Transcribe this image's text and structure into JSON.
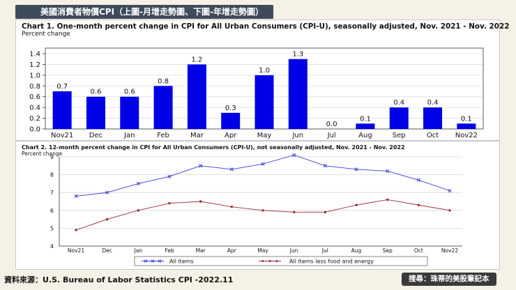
{
  "header": {
    "title": "美國消費者物價CPI（上圖-月增走勢圖、下圖-年增走勢圖）"
  },
  "footer": {
    "source": "資料來源：U.S. Bureau of Labor Statistics CPI -2022.11",
    "badge": "搜尋：珠蒂的美股筆記本"
  },
  "chart_data": [
    {
      "type": "bar",
      "title": "Chart 1. One-month percent change in CPI for All Urban Consumers (CPI-U), seasonally adjusted, Nov. 2021 - Nov. 2022",
      "ylabel": "Percent change",
      "categories": [
        "Nov21",
        "Dec",
        "Jan",
        "Feb",
        "Mar",
        "Apr",
        "May",
        "Jun",
        "Jul",
        "Aug",
        "Sep",
        "Oct",
        "Nov22"
      ],
      "values": [
        0.7,
        0.6,
        0.6,
        0.8,
        1.2,
        0.3,
        1.0,
        1.3,
        0.0,
        0.1,
        0.4,
        0.4,
        0.1
      ],
      "data_labels": [
        "0.7",
        "0.6",
        "0.6",
        "0.8",
        "1.2",
        "0.3",
        "1.0",
        "1.3",
        "0.0",
        "0.1",
        "0.4",
        "0.4",
        "0.1"
      ],
      "yticks": [
        "0.0",
        "0.2",
        "0.4",
        "0.6",
        "0.8",
        "1.0",
        "1.2",
        "1.4"
      ],
      "ylim": [
        0,
        1.4
      ],
      "grid": true,
      "color": "#0000e6"
    },
    {
      "type": "line",
      "title": "Chart 2. 12-month percent change in CPI for All Urban Consumers (CPI-U), not seasonally adjusted, Nov. 2021 - Nov. 2022",
      "ylabel": "Percent change",
      "categories": [
        "Nov21",
        "Dec",
        "Jan",
        "Feb",
        "Mar",
        "Apr",
        "May",
        "Jun",
        "Jul",
        "Aug",
        "Sep",
        "Oct",
        "Nov22"
      ],
      "yticks": [
        "4",
        "5",
        "6",
        "7",
        "8",
        "9"
      ],
      "ylim": [
        4,
        9
      ],
      "grid": true,
      "legend_position": "bottom",
      "series": [
        {
          "name": "All items",
          "color": "#3b3bd9",
          "marker": "x",
          "values": [
            6.8,
            7.0,
            7.5,
            7.9,
            8.5,
            8.3,
            8.6,
            9.1,
            8.5,
            8.3,
            8.2,
            7.7,
            7.1
          ]
        },
        {
          "name": "All items less food and energy",
          "color": "#9b2a3a",
          "marker": "dot",
          "values": [
            4.9,
            5.5,
            6.0,
            6.4,
            6.5,
            6.2,
            6.0,
            5.9,
            5.9,
            6.3,
            6.6,
            6.3,
            6.0
          ]
        }
      ]
    }
  ]
}
